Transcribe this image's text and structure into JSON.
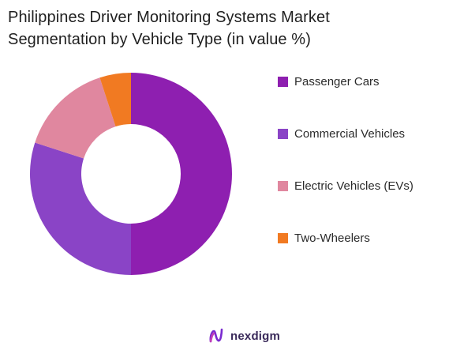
{
  "chart_data": {
    "type": "pie",
    "title": "Philippines Driver Monitoring Systems Market Segmentation by Vehicle Type (in value %)",
    "title_lines": [
      "Philippines Driver Monitoring Systems Market",
      "Segmentation by Vehicle Type (in value %)"
    ],
    "style": "donut",
    "categories": [
      "Passenger Cars",
      "Commercial Vehicles",
      "Electric Vehicles (EVs)",
      "Two-Wheelers"
    ],
    "values": [
      50,
      30,
      15,
      5
    ],
    "colors": [
      "#8e1fb0",
      "#8a44c6",
      "#e0879f",
      "#f17a22"
    ],
    "legend_position": "right"
  },
  "brand": {
    "name": "nexdigm",
    "logo_icon": "nexdigm-n-logo-icon"
  }
}
